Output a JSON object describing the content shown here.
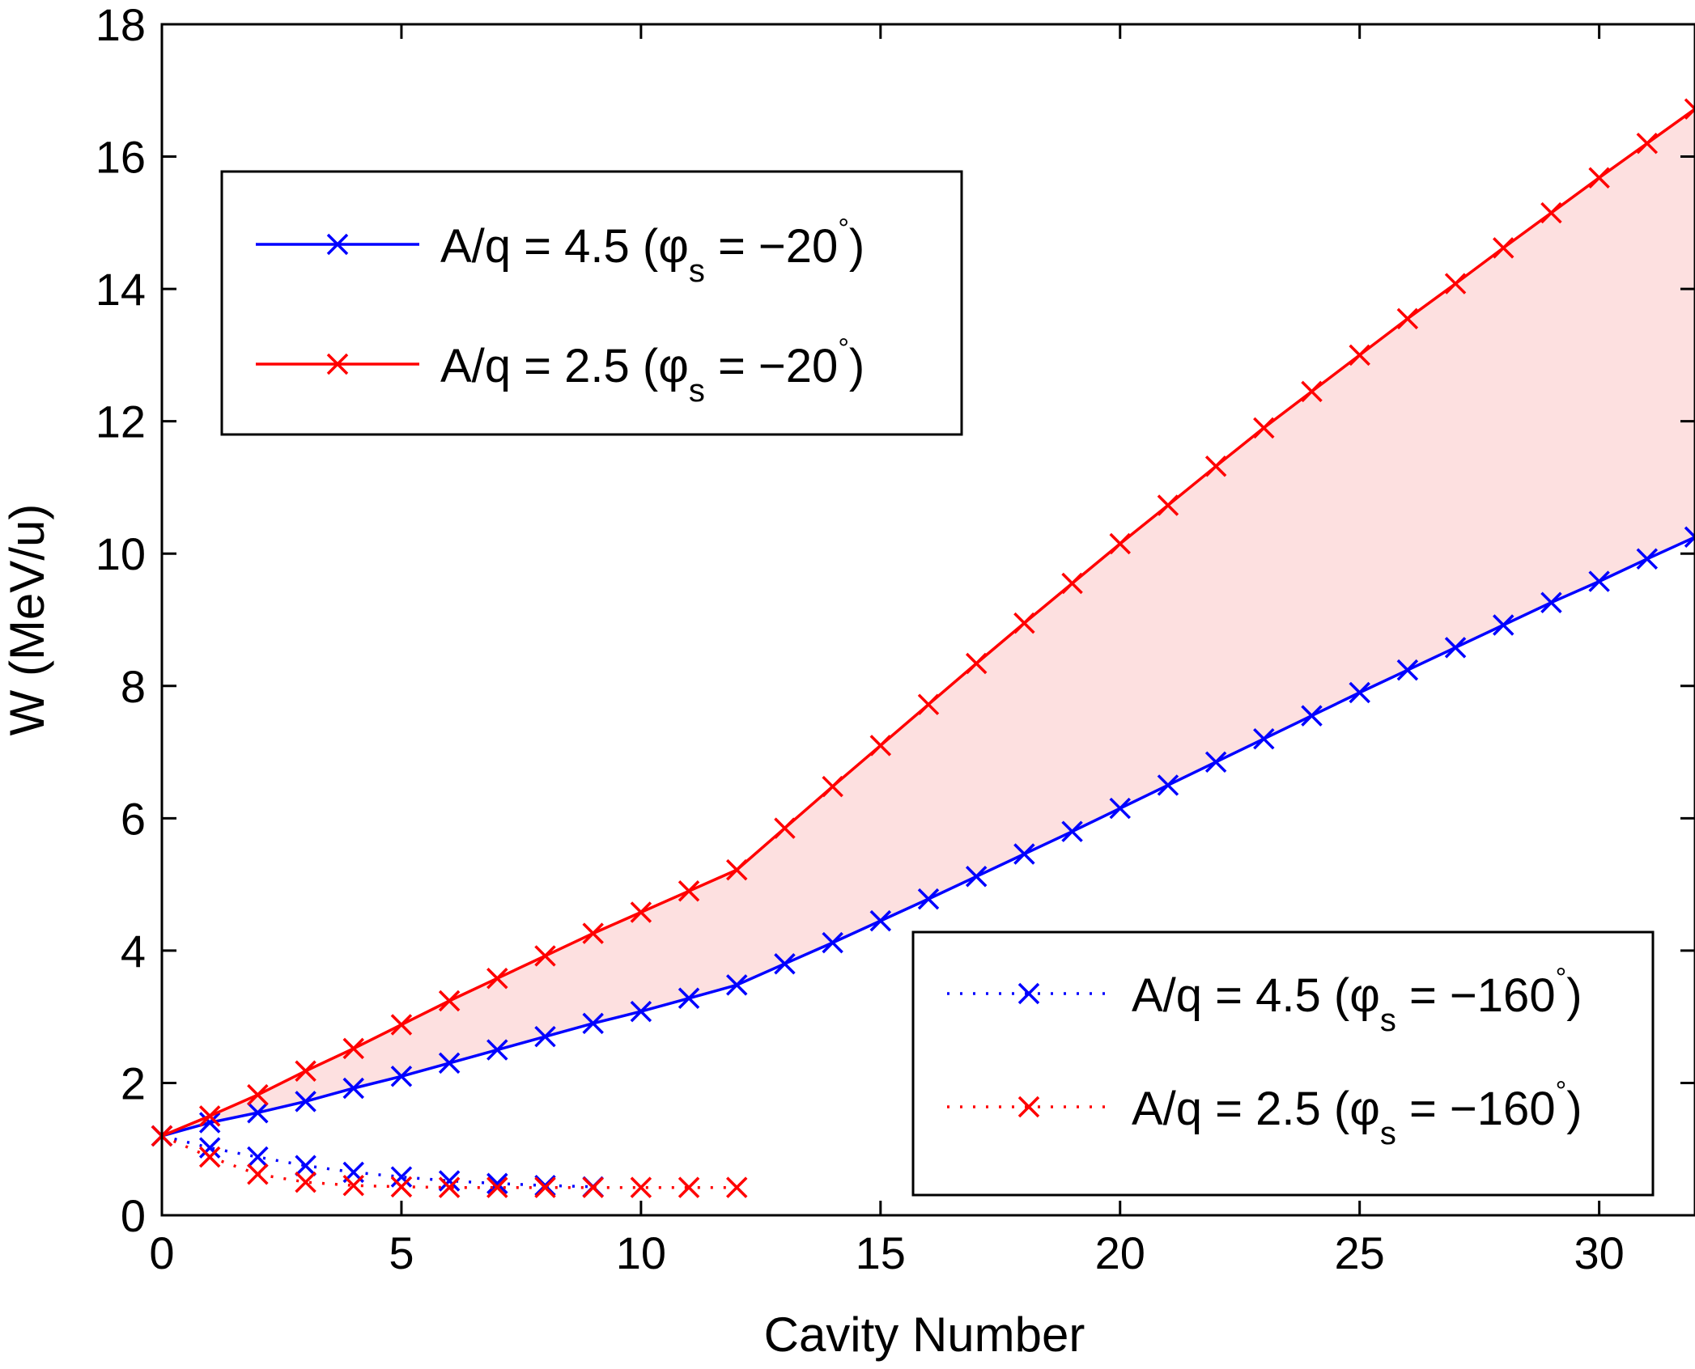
{
  "chart_data": {
    "type": "line",
    "xlabel": "Cavity Number",
    "ylabel": "W (MeV/u)",
    "xlim": [
      0,
      32
    ],
    "ylim": [
      0,
      18
    ],
    "xticks": [
      0,
      5,
      10,
      15,
      20,
      25,
      30
    ],
    "yticks": [
      0,
      2,
      4,
      6,
      8,
      10,
      12,
      14,
      16,
      18
    ],
    "grid": false,
    "fill_between": {
      "upper": "A/q = 2.5 (φs = −20°)",
      "lower": "A/q = 4.5 (φs = −20°)",
      "color": "#fde0e0"
    },
    "series": [
      {
        "name": "A/q = 4.5 (φs = −20°)",
        "color": "#0000ff",
        "linestyle": "solid",
        "marker": "x",
        "x": [
          0,
          1,
          2,
          3,
          4,
          5,
          6,
          7,
          8,
          9,
          10,
          11,
          12,
          13,
          14,
          15,
          16,
          17,
          18,
          19,
          20,
          21,
          22,
          23,
          24,
          25,
          26,
          27,
          28,
          29,
          30,
          31,
          32
        ],
        "y": [
          1.2,
          1.4,
          1.55,
          1.72,
          1.92,
          2.1,
          2.3,
          2.5,
          2.7,
          2.9,
          3.08,
          3.28,
          3.48,
          3.8,
          4.12,
          4.45,
          4.78,
          5.12,
          5.46,
          5.8,
          6.15,
          6.5,
          6.85,
          7.2,
          7.55,
          7.9,
          8.24,
          8.58,
          8.92,
          9.26,
          9.58,
          9.92,
          10.25
        ]
      },
      {
        "name": "A/q = 2.5 (φs = −20°)",
        "color": "#ff0000",
        "linestyle": "solid",
        "marker": "x",
        "x": [
          0,
          1,
          2,
          3,
          4,
          5,
          6,
          7,
          8,
          9,
          10,
          11,
          12,
          13,
          14,
          15,
          16,
          17,
          18,
          19,
          20,
          21,
          22,
          23,
          24,
          25,
          26,
          27,
          28,
          29,
          30,
          31,
          32
        ],
        "y": [
          1.2,
          1.5,
          1.82,
          2.18,
          2.52,
          2.88,
          3.24,
          3.58,
          3.92,
          4.26,
          4.58,
          4.9,
          5.22,
          5.85,
          6.48,
          7.1,
          7.72,
          8.34,
          8.95,
          9.55,
          10.15,
          10.73,
          11.32,
          11.9,
          12.45,
          13.0,
          13.55,
          14.08,
          14.62,
          15.15,
          15.68,
          16.2,
          16.72
        ]
      },
      {
        "name": "A/q = 4.5 (φs = −160°)",
        "color": "#0000ff",
        "linestyle": "dotted",
        "marker": "x",
        "x": [
          0,
          1,
          2,
          3,
          4,
          5,
          6,
          7,
          8,
          9
        ],
        "y": [
          1.2,
          1.02,
          0.88,
          0.75,
          0.65,
          0.58,
          0.52,
          0.48,
          0.45,
          0.43
        ]
      },
      {
        "name": "A/q = 2.5 (φs = −160°)",
        "color": "#ff0000",
        "linestyle": "dotted",
        "marker": "x",
        "x": [
          0,
          1,
          2,
          3,
          4,
          5,
          6,
          7,
          8,
          9,
          10,
          11,
          12
        ],
        "y": [
          1.2,
          0.88,
          0.62,
          0.5,
          0.45,
          0.43,
          0.42,
          0.42,
          0.42,
          0.42,
          0.42,
          0.42,
          0.42
        ]
      }
    ],
    "legends": [
      {
        "position": "upper-left",
        "entries": [
          {
            "pre": "A/q = 4.5 (",
            "mid": " = −20",
            "post": ")"
          },
          {
            "pre": "A/q = 2.5 (",
            "mid": " = −20",
            "post": ")"
          }
        ]
      },
      {
        "position": "lower-right",
        "entries": [
          {
            "pre": "A/q = 4.5 (",
            "mid": " = −160",
            "post": ")"
          },
          {
            "pre": "A/q = 2.5 (",
            "mid": " = −160",
            "post": ")"
          }
        ]
      }
    ],
    "phi_symbol": "φ",
    "phi_sub": "s",
    "degree": "°"
  }
}
